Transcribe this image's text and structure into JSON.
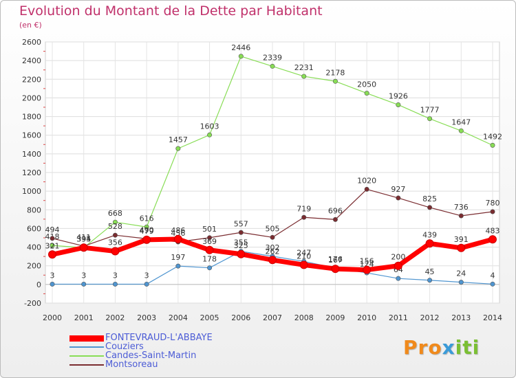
{
  "chart_data": {
    "type": "line",
    "title": "Evolution du Montant de la Dette par Habitant",
    "subtitle": "(en €)",
    "x": [
      "2000",
      "2001",
      "2002",
      "2003",
      "2004",
      "2005",
      "2006",
      "2007",
      "2008",
      "2009",
      "2010",
      "2011",
      "2012",
      "2013",
      "2014"
    ],
    "ylim": [
      -200,
      2600
    ],
    "yticks": [
      -200,
      0,
      200,
      400,
      600,
      800,
      1000,
      1200,
      1400,
      1600,
      1800,
      2000,
      2200,
      2400,
      2600
    ],
    "grid": true,
    "legend_position": "bottom-left",
    "series": [
      {
        "name": "Candes-Saint-Martin",
        "color": "#88dd55",
        "values": [
          418,
          394,
          668,
          616,
          1457,
          1603,
          2446,
          2339,
          2231,
          2178,
          2050,
          1926,
          1777,
          1647,
          1492
        ],
        "labels": [
          "418",
          "394",
          "668",
          "616",
          "1457",
          "1603",
          "2446",
          "2339",
          "2231",
          "2178",
          "2050",
          "1926",
          "1777",
          "1647",
          "1492"
        ]
      },
      {
        "name": "Montsoreau",
        "color": "#7a2c30",
        "values": [
          494,
          411,
          528,
          490,
          456,
          501,
          557,
          505,
          719,
          696,
          1020,
          927,
          825,
          736,
          780
        ],
        "labels": [
          "494",
          "411",
          "528",
          "490",
          "456",
          "501",
          "557",
          "505",
          "719",
          "696",
          "1020",
          "927",
          "825",
          "736",
          "780"
        ]
      },
      {
        "name": "Couziers",
        "color": "#4f95d0",
        "values": [
          3,
          3,
          3,
          3,
          197,
          178,
          355,
          302,
          247,
          176,
          124,
          64,
          45,
          24,
          4
        ],
        "labels": [
          "3",
          "3",
          "3",
          "3",
          "197",
          "178",
          "355",
          "302",
          "247",
          "176",
          "124",
          "64",
          "45",
          "24",
          "4"
        ]
      },
      {
        "name": "FONTEVRAUD-L'ABBAYE",
        "color": "#ff0000",
        "values": [
          321,
          395,
          356,
          479,
          486,
          369,
          325,
          262,
          210,
          167,
          156,
          200,
          439,
          391,
          483
        ],
        "labels": [
          "321",
          "395",
          "356",
          "479",
          "486",
          "369",
          "325",
          "262",
          "210",
          "167",
          "156",
          "200",
          "439",
          "391",
          "483"
        ]
      }
    ]
  },
  "legend": {
    "items": [
      {
        "label": "FONTEVRAUD-L'ABBAYE",
        "color": "#ff0000"
      },
      {
        "label": "Couziers",
        "color": "#4f95d0"
      },
      {
        "label": "Candes-Saint-Martin",
        "color": "#88dd55"
      },
      {
        "label": "Montsoreau",
        "color": "#7a2c30"
      }
    ]
  },
  "brand": {
    "part1": "Pro",
    "part2": "x",
    "part3": "iti"
  }
}
